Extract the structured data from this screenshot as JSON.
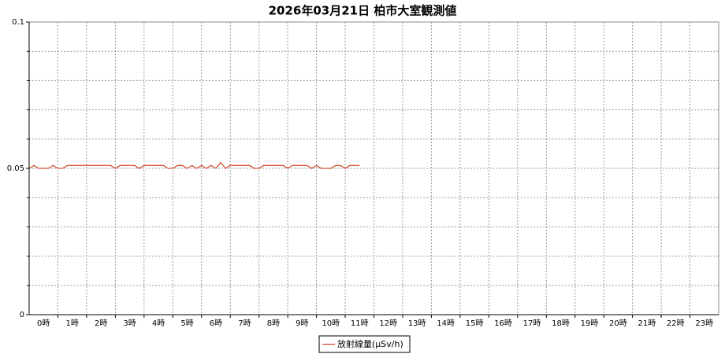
{
  "chart_data": {
    "type": "line",
    "title": "2026年03月21日 柏市大室観測値",
    "categories": [
      "0時",
      "1時",
      "2時",
      "3時",
      "4時",
      "5時",
      "6時",
      "7時",
      "8時",
      "9時",
      "10時",
      "11時",
      "12時",
      "13時",
      "14時",
      "15時",
      "16時",
      "17時",
      "18時",
      "19時",
      "20時",
      "21時",
      "22時",
      "23時"
    ],
    "x": [
      0,
      10,
      20,
      30,
      40,
      50,
      60,
      70,
      80,
      90,
      100,
      110,
      120,
      130,
      140,
      150,
      160,
      170,
      180,
      190,
      200,
      210,
      220,
      230,
      240,
      250,
      260,
      270,
      280,
      290,
      300,
      310,
      320,
      330,
      340,
      350,
      360,
      370,
      380,
      390,
      400,
      410,
      420,
      430,
      440,
      450,
      460,
      470,
      480,
      490,
      500,
      510,
      520,
      530,
      540,
      550,
      560,
      570,
      580,
      590,
      600,
      610,
      620,
      630,
      640,
      650,
      660,
      670,
      680,
      690
    ],
    "xlim": [
      0,
      1440
    ],
    "series": [
      {
        "name": "放射線量(μSv/h)",
        "color": "#cc2200",
        "values": [
          0.05,
          0.051,
          0.05,
          0.05,
          0.05,
          0.051,
          0.05,
          0.05,
          0.051,
          0.051,
          0.051,
          0.051,
          0.051,
          0.051,
          0.051,
          0.051,
          0.051,
          0.051,
          0.05,
          0.051,
          0.051,
          0.051,
          0.051,
          0.05,
          0.051,
          0.051,
          0.051,
          0.051,
          0.051,
          0.05,
          0.05,
          0.051,
          0.051,
          0.05,
          0.051,
          0.05,
          0.051,
          0.05,
          0.051,
          0.05,
          0.052,
          0.05,
          0.051,
          0.051,
          0.051,
          0.051,
          0.051,
          0.05,
          0.05,
          0.051,
          0.051,
          0.051,
          0.051,
          0.051,
          0.05,
          0.051,
          0.051,
          0.051,
          0.051,
          0.05,
          0.051,
          0.05,
          0.05,
          0.05,
          0.051,
          0.051,
          0.05,
          0.051,
          0.051,
          0.051
        ]
      }
    ],
    "ylim": [
      0,
      0.1
    ],
    "yticks": [
      0,
      0.05,
      0.1
    ],
    "minor_yticks": [
      0.01,
      0.02,
      0.03,
      0.04,
      0.06,
      0.07,
      0.08,
      0.09
    ],
    "grid": true
  }
}
